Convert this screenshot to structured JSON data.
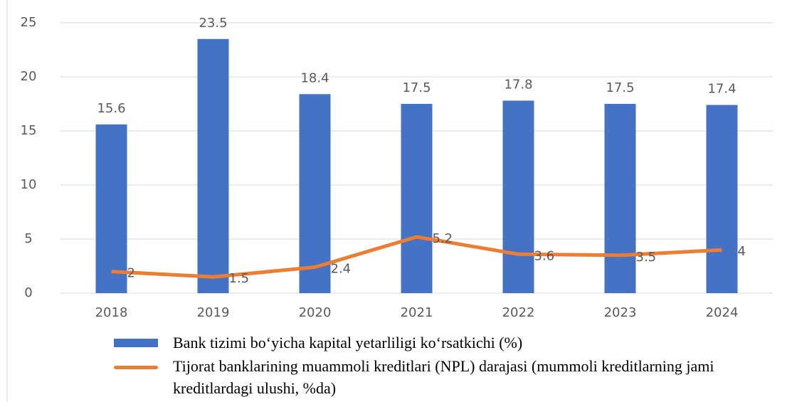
{
  "chart_data": {
    "type": "bar",
    "categories": [
      "2018",
      "2019",
      "2020",
      "2021",
      "2022",
      "2023",
      "2024"
    ],
    "series": [
      {
        "name": "Bank tizimi bo‘yicha kapital yetarliligi ko‘rsatkichi (%)",
        "type": "bar",
        "color": "#4472c4",
        "values": [
          15.6,
          23.5,
          18.4,
          17.5,
          17.8,
          17.5,
          17.4
        ]
      },
      {
        "name": "Tijorat banklarining muammoli kreditlari (NPL) darajasi (mummoli kreditlarning jami kreditlardagi ulushi, %da)",
        "type": "line",
        "color": "#ed7d31",
        "values": [
          2,
          1.5,
          2.4,
          5.2,
          3.6,
          3.5,
          4
        ]
      }
    ],
    "ylim": [
      0,
      25
    ],
    "yticks": [
      0,
      5,
      10,
      15,
      20,
      25
    ],
    "grid": true
  }
}
